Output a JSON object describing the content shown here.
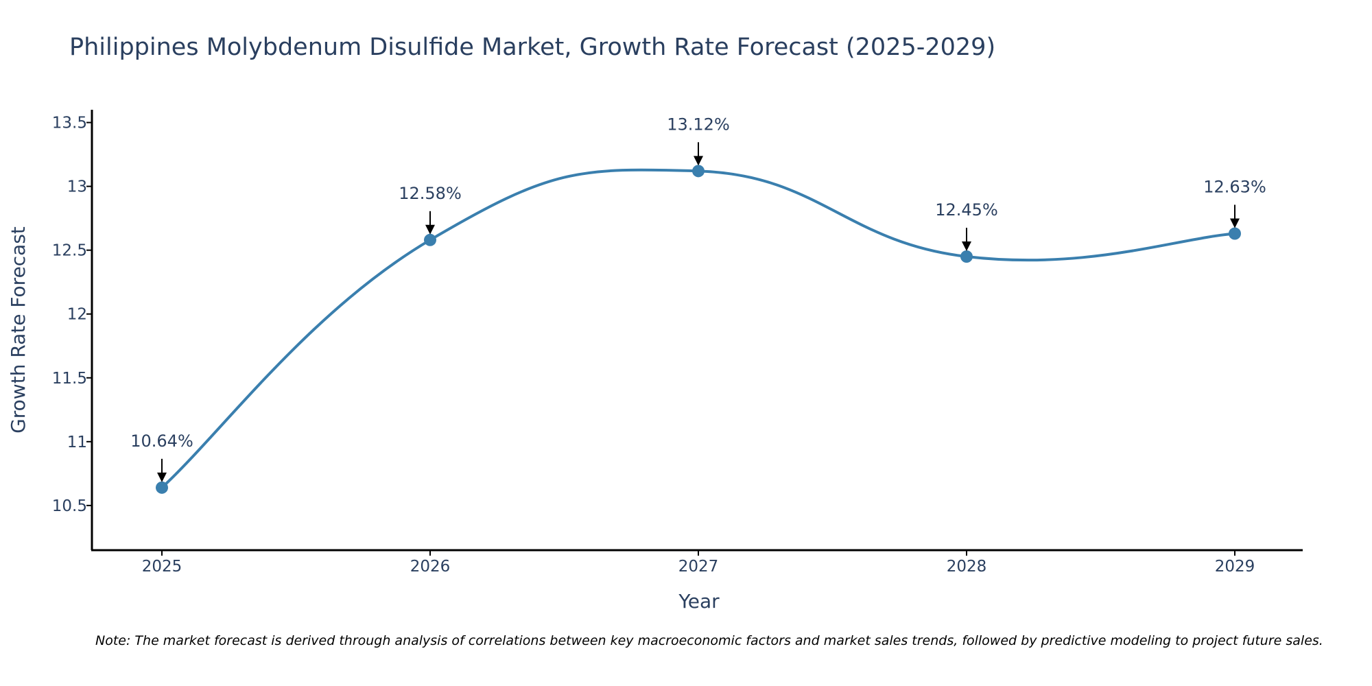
{
  "chart_data": {
    "type": "line",
    "title": "Philippines Molybdenum Disulfide Market, Growth Rate Forecast (2025-2029)",
    "xlabel": "Year",
    "ylabel": "Growth Rate Forecast",
    "categories": [
      "2025",
      "2026",
      "2027",
      "2028",
      "2029"
    ],
    "values": [
      10.64,
      12.58,
      13.12,
      12.45,
      12.63
    ],
    "data_labels": [
      "10.64%",
      "12.58%",
      "13.12%",
      "12.45%",
      "12.63%"
    ],
    "ylim": [
      10.15,
      13.6
    ],
    "yticks": [
      10.5,
      11,
      11.5,
      12,
      12.5,
      13,
      13.5
    ],
    "ytick_labels": [
      "10.5",
      "11",
      "11.5",
      "12",
      "12.5",
      "13",
      "13.5"
    ],
    "grid": false,
    "legend": "none",
    "line_color": "#3a7fae",
    "marker_color": "#3a7fae",
    "note": "Note: The market forecast is derived through analysis of correlations between key macroeconomic factors and market sales trends, followed by predictive modeling to project future sales."
  }
}
